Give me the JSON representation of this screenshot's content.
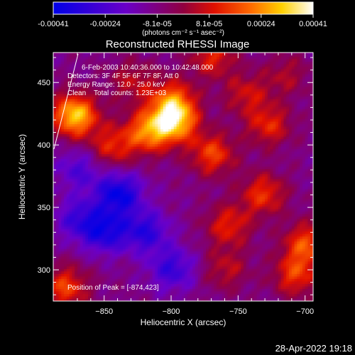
{
  "chart_data": {
    "type": "heatmap",
    "title": "Reconstructed RHESSI Image",
    "xlabel": "Heliocentric X (arcsec)",
    "ylabel": "Heliocentric Y (arcsec)",
    "xlim": [
      -888,
      -694
    ],
    "ylim": [
      275,
      474
    ],
    "x_ticks": [
      -850,
      -800,
      -750,
      -700
    ],
    "y_ticks": [
      300,
      350,
      400,
      450
    ],
    "colorbar": {
      "ticks": [
        "-0.00041",
        "-0.00024",
        "-8.1e-05",
        "8.1e-05",
        "0.00024",
        "0.00041"
      ],
      "units": "(photons cm⁻² s⁻¹ asec⁻²)",
      "range": [
        -0.00041,
        0.00041
      ],
      "colormap": "blue-purple-red-yellow-white"
    },
    "annotations": [
      "6-Feb-2003 10:40:36.000 to 10:42:48.000",
      "Detectors: 3F 4F 5F 6F 7F 8F, Att 0",
      "Energy Range: 12.0 - 25.0 keV",
      "Clean    Total counts: 1.23E+03"
    ],
    "peak_label": "Position of Peak = [-874,423]",
    "peak_position": [
      -874,
      423
    ],
    "sources": [
      {
        "x": -873,
        "y": 423,
        "level": 0.00041
      },
      {
        "x": -798,
        "y": 418,
        "level": 0.00036
      },
      {
        "x": -818,
        "y": 410,
        "level": 0.0003
      },
      {
        "x": -800,
        "y": 435,
        "level": 0.00026
      },
      {
        "x": -770,
        "y": 392,
        "level": 0.00024
      },
      {
        "x": -845,
        "y": 398,
        "level": 0.0002
      },
      {
        "x": -770,
        "y": 470,
        "level": 0.0002
      },
      {
        "x": -728,
        "y": 415,
        "level": 0.0002
      },
      {
        "x": -732,
        "y": 360,
        "level": 0.00022
      },
      {
        "x": -758,
        "y": 335,
        "level": 0.0002
      },
      {
        "x": -700,
        "y": 320,
        "level": 0.00025
      },
      {
        "x": -708,
        "y": 295,
        "level": 0.00022
      },
      {
        "x": -880,
        "y": 285,
        "level": 0.00024
      },
      {
        "x": -745,
        "y": 440,
        "level": 0.00016
      },
      {
        "x": -830,
        "y": 450,
        "level": 0.00014
      },
      {
        "x": -760,
        "y": 300,
        "level": 0.00014
      },
      {
        "x": -715,
        "y": 455,
        "level": 0.00012
      },
      {
        "x": -840,
        "y": 360,
        "level": -0.0003
      },
      {
        "x": -850,
        "y": 330,
        "level": -0.00025
      },
      {
        "x": -820,
        "y": 330,
        "level": -0.00022
      },
      {
        "x": -800,
        "y": 300,
        "level": -0.0002
      },
      {
        "x": -870,
        "y": 340,
        "level": -0.00018
      },
      {
        "x": -870,
        "y": 380,
        "level": -0.00015
      }
    ]
  },
  "footer": {
    "date": "28-Apr-2022 19:18"
  }
}
